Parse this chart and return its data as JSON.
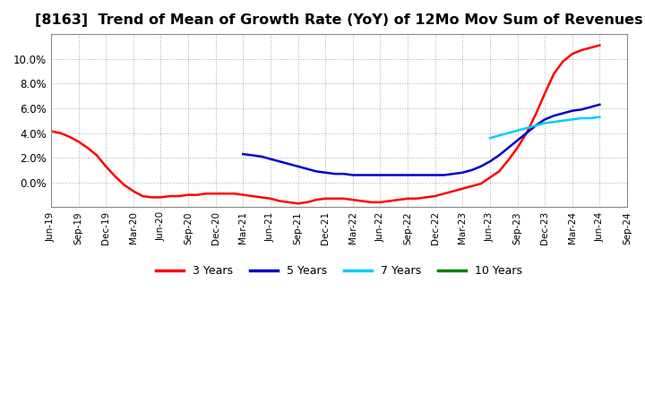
{
  "title": "[8163]  Trend of Mean of Growth Rate (YoY) of 12Mo Mov Sum of Revenues",
  "title_fontsize": 11.5,
  "background_color": "#ffffff",
  "plot_bg_color": "#ffffff",
  "grid_color": "#aaaaaa",
  "ylim": [
    -0.02,
    0.12
  ],
  "series": {
    "3y": {
      "color": "#ff0000",
      "label": "3 Years",
      "x": [
        0,
        1,
        2,
        3,
        4,
        5,
        6,
        7,
        8,
        9,
        10,
        11,
        12,
        13,
        14,
        15,
        16,
        17,
        18,
        19,
        20,
        21,
        22,
        23,
        24,
        25,
        26,
        27,
        28,
        29,
        30,
        31,
        32,
        33,
        34,
        35,
        36,
        37,
        38,
        39,
        40,
        41,
        42,
        43,
        44,
        45,
        46,
        47,
        48,
        49,
        50,
        51,
        52,
        53,
        54,
        55,
        56,
        57,
        58,
        59,
        60
      ],
      "y": [
        0.0415,
        0.04,
        0.037,
        0.033,
        0.028,
        0.022,
        0.013,
        0.005,
        -0.002,
        -0.007,
        -0.011,
        -0.012,
        -0.012,
        -0.011,
        -0.011,
        -0.01,
        -0.01,
        -0.009,
        -0.009,
        -0.009,
        -0.009,
        -0.01,
        -0.011,
        -0.012,
        -0.013,
        -0.015,
        -0.016,
        -0.017,
        -0.016,
        -0.014,
        -0.013,
        -0.013,
        -0.013,
        -0.014,
        -0.015,
        -0.016,
        -0.016,
        -0.015,
        -0.014,
        -0.013,
        -0.013,
        -0.012,
        -0.011,
        -0.009,
        -0.007,
        -0.005,
        -0.003,
        -0.001,
        0.004,
        0.009,
        0.018,
        0.028,
        0.04,
        0.055,
        0.072,
        0.088,
        0.098,
        0.104,
        0.107,
        0.109,
        0.111
      ]
    },
    "5y": {
      "color": "#0000cc",
      "label": "5 Years",
      "x": [
        21,
        22,
        23,
        24,
        25,
        26,
        27,
        28,
        29,
        30,
        31,
        32,
        33,
        34,
        35,
        36,
        37,
        38,
        39,
        40,
        41,
        42,
        43,
        44,
        45,
        46,
        47,
        48,
        49,
        50,
        51,
        52,
        53,
        54,
        55,
        56,
        57,
        58,
        59,
        60
      ],
      "y": [
        0.023,
        0.022,
        0.021,
        0.019,
        0.017,
        0.015,
        0.013,
        0.011,
        0.009,
        0.008,
        0.007,
        0.007,
        0.006,
        0.006,
        0.006,
        0.006,
        0.006,
        0.006,
        0.006,
        0.006,
        0.006,
        0.006,
        0.006,
        0.007,
        0.008,
        0.01,
        0.013,
        0.017,
        0.022,
        0.028,
        0.034,
        0.04,
        0.046,
        0.051,
        0.054,
        0.056,
        0.058,
        0.059,
        0.061,
        0.063
      ]
    },
    "7y": {
      "color": "#00ccff",
      "label": "7 Years",
      "x": [
        48,
        49,
        50,
        51,
        52,
        53,
        54,
        55,
        56,
        57,
        58,
        59,
        60
      ],
      "y": [
        0.036,
        0.038,
        0.04,
        0.042,
        0.044,
        0.046,
        0.048,
        0.049,
        0.05,
        0.051,
        0.052,
        0.052,
        0.053
      ]
    },
    "10y": {
      "color": "#008000",
      "label": "10 Years",
      "x": [],
      "y": []
    }
  },
  "x_tick_labels": [
    "Jun-19",
    "Sep-19",
    "Dec-19",
    "Mar-20",
    "Jun-20",
    "Sep-20",
    "Dec-20",
    "Mar-21",
    "Jun-21",
    "Sep-21",
    "Dec-21",
    "Mar-22",
    "Jun-22",
    "Sep-22",
    "Dec-22",
    "Mar-23",
    "Jun-23",
    "Sep-23",
    "Dec-23",
    "Mar-24",
    "Jun-24",
    "Sep-24"
  ],
  "x_tick_positions": [
    0,
    3,
    6,
    9,
    12,
    15,
    18,
    21,
    24,
    27,
    30,
    33,
    36,
    39,
    42,
    45,
    48,
    51,
    54,
    57,
    60,
    63
  ],
  "xlim": [
    0,
    63
  ],
  "legend_labels": [
    "3 Years",
    "5 Years",
    "7 Years",
    "10 Years"
  ],
  "legend_colors": [
    "#ff0000",
    "#0000cc",
    "#00ccff",
    "#008000"
  ]
}
